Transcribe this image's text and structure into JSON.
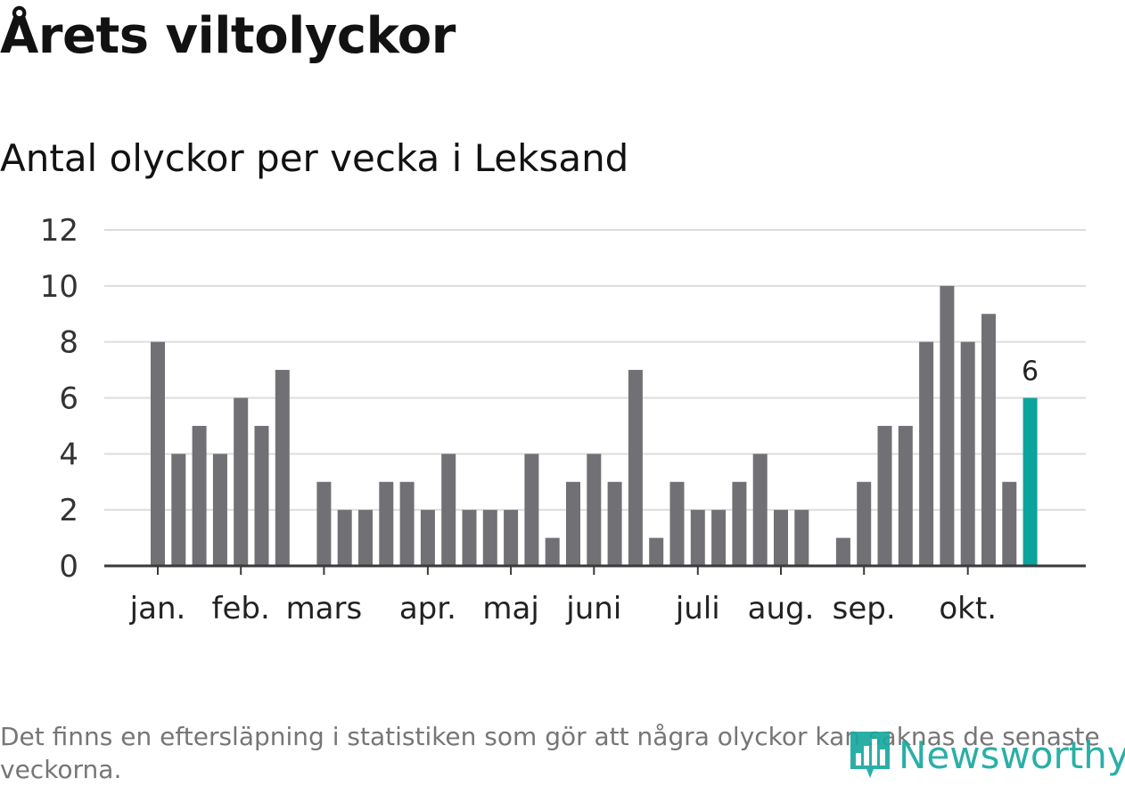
{
  "title": "Årets viltolyckor",
  "subtitle": "Antal olyckor per vecka i Leksand",
  "footnote": "Det finns en eftersläpning i statistiken som gör att några olyckor kan saknas de senaste veckorna.",
  "logo": {
    "text": "Newsworthy",
    "icon": "bar-chart-logo-icon"
  },
  "colors": {
    "bar": "#717074",
    "highlight": "#0ba39c",
    "grid": "#dddddd",
    "axis": "#3a3a3a",
    "text": "#333333",
    "brand": "#19a9a0"
  },
  "chart_data": {
    "type": "bar",
    "title": "Årets viltolyckor",
    "subtitle": "Antal olyckor per vecka i Leksand",
    "xlabel": "",
    "ylabel": "",
    "ylim": [
      0,
      12
    ],
    "yticks": [
      0,
      2,
      4,
      6,
      8,
      10,
      12
    ],
    "grid": true,
    "values": [
      8,
      4,
      5,
      4,
      6,
      5,
      7,
      0,
      3,
      2,
      2,
      3,
      3,
      2,
      4,
      2,
      2,
      2,
      4,
      1,
      3,
      4,
      3,
      7,
      1,
      3,
      2,
      2,
      3,
      4,
      2,
      2,
      0,
      1,
      3,
      5,
      5,
      8,
      10,
      8,
      9,
      3,
      6
    ],
    "highlight_index": 42,
    "highlight_label": "6",
    "month_labels": [
      {
        "label": "jan.",
        "index": 0
      },
      {
        "label": "feb.",
        "index": 4
      },
      {
        "label": "mars",
        "index": 8
      },
      {
        "label": "apr.",
        "index": 13
      },
      {
        "label": "maj",
        "index": 17
      },
      {
        "label": "juni",
        "index": 21
      },
      {
        "label": "juli",
        "index": 26
      },
      {
        "label": "aug.",
        "index": 30
      },
      {
        "label": "sep.",
        "index": 34
      },
      {
        "label": "okt.",
        "index": 39
      }
    ]
  }
}
